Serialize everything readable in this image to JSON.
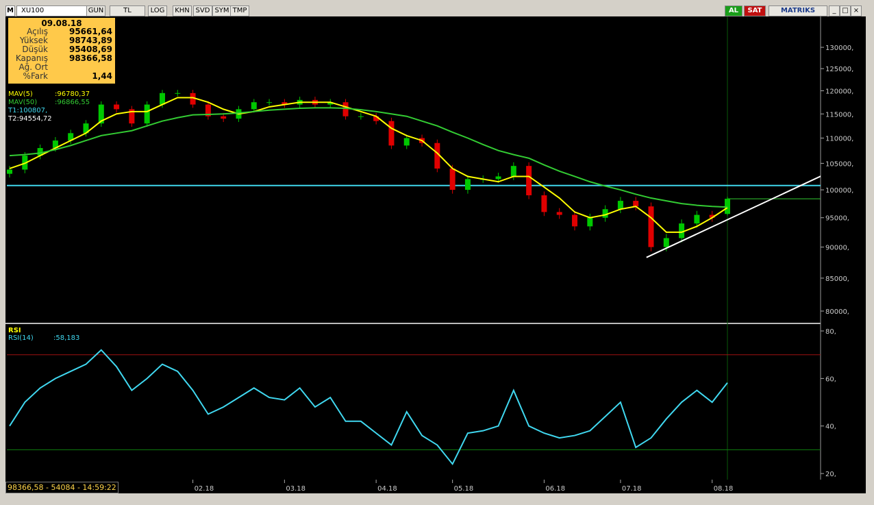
{
  "toolbar": {
    "symbol": "XU100",
    "buttons": [
      "GUN",
      "TL",
      "LOG",
      "KHN",
      "SVD",
      "SYM",
      "TMP"
    ],
    "buy": "AL",
    "sell": "SAT",
    "brand": "MATRIKS"
  },
  "info_box": {
    "date": "09.08.18",
    "rows": [
      {
        "label": "Açılış",
        "value": "95661,64"
      },
      {
        "label": "Yüksek",
        "value": "98743,89"
      },
      {
        "label": "Düşük",
        "value": "95408,69"
      },
      {
        "label": "Kapanış",
        "value": "98366,58"
      },
      {
        "label": "Ağ. Ort"
      },
      {
        "label": "%Fark",
        "value": "1,44"
      }
    ]
  },
  "status": "98366,58 - 54084 - 14:59:22",
  "chart_data": [
    {
      "type": "candlestick",
      "log": true,
      "ylim": [
        78400,
        137600
      ],
      "yticks": [
        {
          "value": 80000,
          "label": "80000,"
        },
        {
          "value": 85000,
          "label": "85000,"
        },
        {
          "value": 90000,
          "label": "90000,"
        },
        {
          "value": 95000,
          "label": "95000,"
        },
        {
          "value": 100000,
          "label": "100000,"
        },
        {
          "value": 105000,
          "label": "105000,"
        },
        {
          "value": 110000,
          "label": "110000,"
        },
        {
          "value": 115000,
          "label": "115000,"
        },
        {
          "value": 120000,
          "label": "120000,"
        },
        {
          "value": 125000,
          "label": "125000,"
        },
        {
          "value": 130000,
          "label": "130000,"
        }
      ],
      "categories": [
        null,
        null,
        null,
        null,
        null,
        null,
        null,
        null,
        null,
        null,
        null,
        null,
        "02.18",
        null,
        null,
        null,
        null,
        null,
        "03.18",
        null,
        null,
        null,
        null,
        null,
        "04.18",
        null,
        null,
        null,
        null,
        "05.18",
        null,
        null,
        null,
        null,
        null,
        "06.18",
        null,
        null,
        null,
        null,
        "07.18",
        null,
        null,
        null,
        null,
        null,
        "08.18",
        null
      ],
      "open": [
        103000,
        103800,
        106500,
        108000,
        109500,
        111000,
        113000,
        117000,
        116000,
        113000,
        117000,
        119500,
        119500,
        117000,
        114500,
        114000,
        116000,
        117500,
        117500,
        117000,
        118000,
        117000,
        117500,
        114500,
        114500,
        113500,
        108500,
        110000,
        109000,
        104000,
        100000,
        102000,
        102000,
        102500,
        104500,
        99000,
        96000,
        95500,
        93500,
        95000,
        96500,
        98000,
        97000,
        90000,
        91500,
        94000,
        95500,
        95661.64
      ],
      "high": [
        104500,
        107200,
        108700,
        110200,
        111700,
        113700,
        117700,
        117700,
        116700,
        117700,
        120200,
        120200,
        120200,
        117700,
        115200,
        116700,
        118200,
        118200,
        118200,
        118700,
        118700,
        118200,
        118200,
        115200,
        115200,
        114200,
        110700,
        110700,
        109700,
        104700,
        102700,
        102700,
        103200,
        105200,
        105200,
        99700,
        96700,
        96200,
        95700,
        97200,
        98700,
        98700,
        97700,
        92200,
        94700,
        96200,
        96200,
        98743.89
      ],
      "low": [
        102300,
        103100,
        105800,
        107300,
        108800,
        110300,
        112300,
        115300,
        112300,
        112300,
        116300,
        118800,
        116300,
        113800,
        113300,
        113300,
        115300,
        116800,
        116300,
        116300,
        116300,
        116300,
        113800,
        113800,
        112800,
        107800,
        107800,
        108300,
        103300,
        99300,
        99300,
        101300,
        101300,
        101800,
        98300,
        95300,
        94800,
        92800,
        92800,
        94300,
        95800,
        96300,
        89300,
        89300,
        90800,
        93300,
        94300,
        95408.69
      ],
      "close": [
        103800,
        106500,
        108000,
        109500,
        111000,
        113000,
        117000,
        116000,
        113000,
        117000,
        119500,
        119500,
        117000,
        114500,
        114000,
        116000,
        117500,
        117500,
        117000,
        118000,
        117000,
        117500,
        114500,
        114500,
        113500,
        108500,
        110000,
        109000,
        104000,
        100000,
        102000,
        102000,
        102500,
        104500,
        99000,
        96000,
        95500,
        93500,
        95000,
        96500,
        98000,
        97000,
        90000,
        91500,
        94000,
        95500,
        95000,
        98366.58
      ],
      "up_color": "#00c800",
      "down_color": "#e00000",
      "series": [
        {
          "name": "MAV(5)",
          "value_label": ":96780,37",
          "color": "#ffff00",
          "values": [
            104000,
            105000,
            106500,
            108000,
            109500,
            111000,
            113500,
            115000,
            115500,
            115500,
            117000,
            118500,
            118500,
            117500,
            116000,
            115000,
            115500,
            116500,
            117000,
            117500,
            117500,
            117500,
            116500,
            115500,
            114500,
            112000,
            110500,
            109500,
            107000,
            104000,
            102500,
            102000,
            101500,
            102500,
            102500,
            100500,
            98500,
            96000,
            95000,
            95500,
            96500,
            97000,
            95000,
            92500,
            92500,
            93500,
            95000,
            96780.37
          ]
        },
        {
          "name": "MAV(50)",
          "value_label": ":96866,55",
          "color": "#33cc33",
          "values": [
            106500,
            106700,
            107000,
            107700,
            108500,
            109500,
            110500,
            111000,
            111500,
            112500,
            113500,
            114200,
            114800,
            114900,
            115000,
            115200,
            115500,
            115800,
            116000,
            116200,
            116300,
            116300,
            116200,
            115900,
            115500,
            115000,
            114500,
            113500,
            112500,
            111200,
            110000,
            108700,
            107500,
            106700,
            106000,
            104700,
            103500,
            102500,
            101500,
            100700,
            100000,
            99200,
            98500,
            98000,
            97500,
            97200,
            97000,
            96866.55
          ]
        }
      ],
      "hline": {
        "label": "T1:100807,",
        "value": 100807,
        "color": "#40d8ee"
      },
      "trendline": {
        "label": "T2:94554,72",
        "x": [
          41.7,
          53.3
        ],
        "y": [
          88300,
          102800
        ],
        "color": "#ffffff"
      }
    },
    {
      "type": "line",
      "title": "RSI",
      "ylim": [
        18,
        82.6
      ],
      "yticks": [
        {
          "value": 20,
          "label": "20,"
        },
        {
          "value": 40,
          "label": "40,"
        },
        {
          "value": 60,
          "label": "60,"
        },
        {
          "value": 80,
          "label": "80,"
        }
      ],
      "levels": [
        {
          "value": 70,
          "color": "#a01010"
        },
        {
          "value": 30,
          "color": "#108010"
        }
      ],
      "series": [
        {
          "name": "RSI(14)",
          "value_label": ":58,183",
          "color": "#40d8f0",
          "values": [
            40,
            50,
            56,
            60,
            63,
            66,
            72,
            65,
            55,
            60,
            66,
            63,
            55,
            45,
            48,
            52,
            56,
            52,
            51,
            56,
            48,
            52,
            42,
            42,
            37,
            32,
            46,
            36,
            32,
            24,
            37,
            38,
            40,
            55,
            40,
            37,
            35,
            36,
            38,
            44,
            50,
            31,
            35,
            43,
            50,
            55,
            50,
            58.183
          ]
        }
      ]
    }
  ]
}
